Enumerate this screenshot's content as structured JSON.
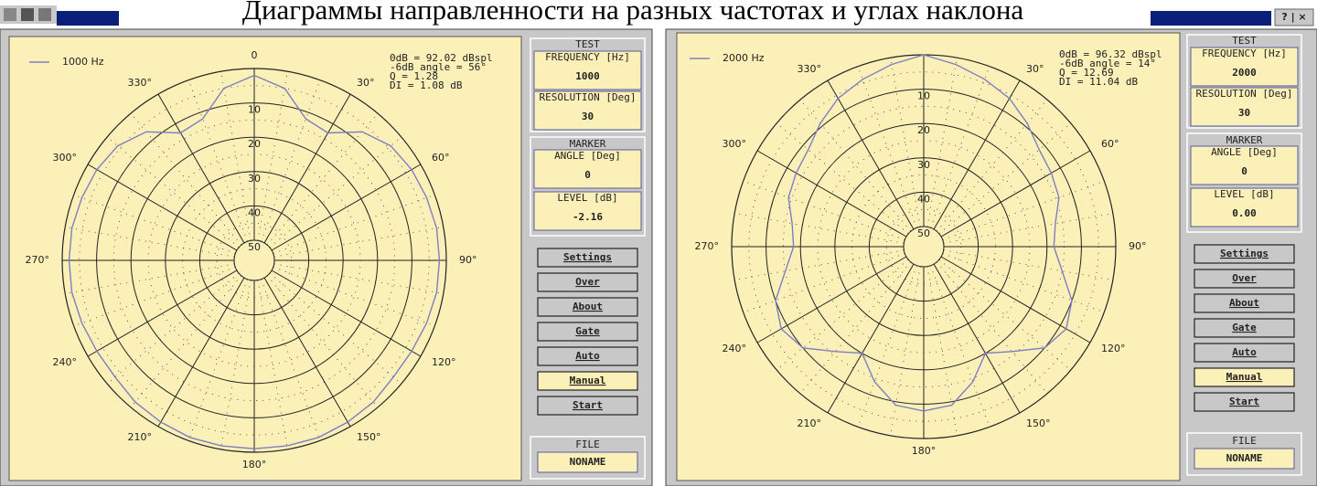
{
  "title": "Диаграммы направленности на разных частотах и углах наклона",
  "title_buttons": "? | ×",
  "chart_data": [
    {
      "type": "polar",
      "series": [
        {
          "name": "1000 Hz",
          "color": "#7f7fc0",
          "values": [
            2,
            5,
            12,
            13,
            7,
            4,
            3,
            2.5,
            2,
            2,
            2,
            2.5,
            3,
            3,
            2,
            1.5,
            1,
            1,
            1,
            1,
            1,
            1.5,
            2,
            3,
            3,
            2.5,
            2,
            2,
            2,
            2.5,
            3,
            4,
            7,
            13,
            12,
            5
          ]
        }
      ],
      "x": [
        0,
        10,
        20,
        30,
        40,
        50,
        60,
        70,
        80,
        90,
        100,
        110,
        120,
        130,
        140,
        150,
        160,
        170,
        180,
        190,
        200,
        210,
        220,
        230,
        240,
        250,
        260,
        270,
        280,
        290,
        300,
        310,
        320,
        330,
        340,
        350
      ],
      "xticks": [
        {
          "value": 0,
          "label": "0"
        },
        {
          "value": 30,
          "label": "30°"
        },
        {
          "value": 60,
          "label": "60°"
        },
        {
          "value": 90,
          "label": "90°"
        },
        {
          "value": 120,
          "label": "120°"
        },
        {
          "value": 150,
          "label": "150°"
        },
        {
          "value": 180,
          "label": "180°"
        },
        {
          "value": 210,
          "label": "210°"
        },
        {
          "value": 240,
          "label": "240°"
        },
        {
          "value": 270,
          "label": "270°"
        },
        {
          "value": 300,
          "label": "300°"
        },
        {
          "value": 330,
          "label": "330°"
        }
      ],
      "rlim": [
        0,
        50
      ],
      "rticks": [
        10,
        20,
        30,
        40,
        50
      ],
      "info": [
        "0dB = 92.02 dBspl",
        "-6dB angle = 56°",
        "Q = 1.28",
        "DI = 1.08 dB"
      ]
    },
    {
      "type": "polar",
      "series": [
        {
          "name": "2000 Hz",
          "color": "#7f7fc0",
          "values": [
            0,
            2,
            4,
            6,
            9,
            12,
            13,
            14,
            17,
            18,
            15,
            10,
            8,
            10,
            16,
            20,
            14,
            9,
            8,
            9,
            14,
            20,
            16,
            10,
            8,
            10,
            15,
            18,
            17,
            14,
            13,
            12,
            9,
            6,
            4,
            2
          ]
        }
      ],
      "x": [
        0,
        10,
        20,
        30,
        40,
        50,
        60,
        70,
        80,
        90,
        100,
        110,
        120,
        130,
        140,
        150,
        160,
        170,
        180,
        190,
        200,
        210,
        220,
        230,
        240,
        250,
        260,
        270,
        280,
        290,
        300,
        310,
        320,
        330,
        340,
        350
      ],
      "xticks": [
        {
          "value": 30,
          "label": "30°"
        },
        {
          "value": 60,
          "label": "60°"
        },
        {
          "value": 90,
          "label": "90°"
        },
        {
          "value": 120,
          "label": "120°"
        },
        {
          "value": 150,
          "label": "150°"
        },
        {
          "value": 180,
          "label": "180°"
        },
        {
          "value": 210,
          "label": "210°"
        },
        {
          "value": 240,
          "label": "240°"
        },
        {
          "value": 270,
          "label": "270°"
        },
        {
          "value": 300,
          "label": "300°"
        },
        {
          "value": 330,
          "label": "330°"
        }
      ],
      "rlim": [
        0,
        50
      ],
      "rticks": [
        10,
        20,
        30,
        40,
        50
      ],
      "info": [
        "0dB = 96.32 dBspl",
        "-6dB angle = 14°",
        "Q = 12.69",
        "DI = 11.04 dB"
      ]
    }
  ],
  "panels": [
    {
      "test": "TEST",
      "frequency_label": "FREQUENCY [Hz]",
      "frequency": "1000",
      "resolution_label": "RESOLUTION [Deg]",
      "resolution": "30",
      "marker": "MARKER",
      "angle_label": "ANGLE [Deg]",
      "angle": "0",
      "level_label": "LEVEL [dB]",
      "level": "-2.16",
      "buttons": [
        "Settings",
        "Over",
        "About",
        "Gate",
        "Auto",
        "Manual",
        "Start"
      ],
      "file": "FILE",
      "file_name": "NONAME"
    },
    {
      "test": "TEST",
      "frequency_label": "FREQUENCY [Hz]",
      "frequency": "2000",
      "resolution_label": "RESOLUTION [Deg]",
      "resolution": "30",
      "marker": "MARKER",
      "angle_label": "ANGLE [Deg]",
      "angle": "0",
      "level_label": "LEVEL [dB]",
      "level": "0.00",
      "buttons": [
        "Settings",
        "Over",
        "About",
        "Gate",
        "Auto",
        "Manual",
        "Start"
      ],
      "file": "FILE",
      "file_name": "NONAME"
    }
  ]
}
